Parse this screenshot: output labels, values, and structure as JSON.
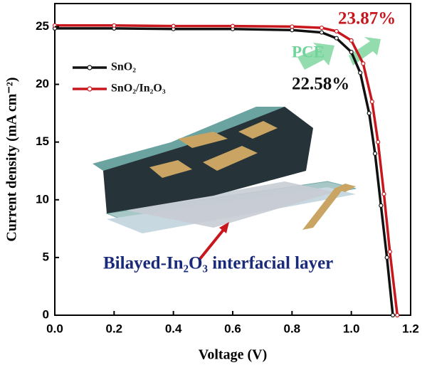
{
  "chart_data": {
    "type": "line",
    "x_label": "Voltage (V)",
    "y_label": "Current density (mA cm⁻²)",
    "xlim": [
      0,
      1.2
    ],
    "ylim": [
      0,
      27
    ],
    "xticks": [
      {
        "value": 0,
        "label": "0.0"
      },
      0.2,
      0.4,
      0.6,
      0.8,
      {
        "value": 1,
        "label": "1.0"
      },
      1.2
    ],
    "yticks": [
      0,
      5,
      10,
      15,
      20,
      25
    ],
    "legend": "upper left",
    "series": [
      {
        "name": "SnO₂",
        "color": "#111111",
        "x": [
          0,
          0.2,
          0.4,
          0.6,
          0.8,
          0.9,
          0.95,
          1.0,
          1.03,
          1.06,
          1.08,
          1.1,
          1.12,
          1.14
        ],
        "values": [
          24.85,
          24.85,
          24.8,
          24.8,
          24.7,
          24.5,
          24.0,
          22.8,
          21.0,
          17.5,
          14.0,
          9.5,
          5.0,
          0
        ]
      },
      {
        "name": "SnO₂/In₂O₃",
        "color": "#c8161d",
        "x": [
          0,
          0.2,
          0.4,
          0.6,
          0.8,
          0.9,
          0.95,
          1.0,
          1.04,
          1.07,
          1.09,
          1.11,
          1.13,
          1.155
        ],
        "values": [
          25.1,
          25.1,
          25.05,
          25.05,
          25.0,
          24.9,
          24.6,
          23.8,
          21.8,
          18.5,
          15.0,
          10.5,
          5.5,
          0
        ]
      }
    ],
    "annotations": [
      "23.87%",
      "PCE",
      "22.58%",
      "Bilayed-In₂O₃ interfacial layer"
    ]
  }
}
